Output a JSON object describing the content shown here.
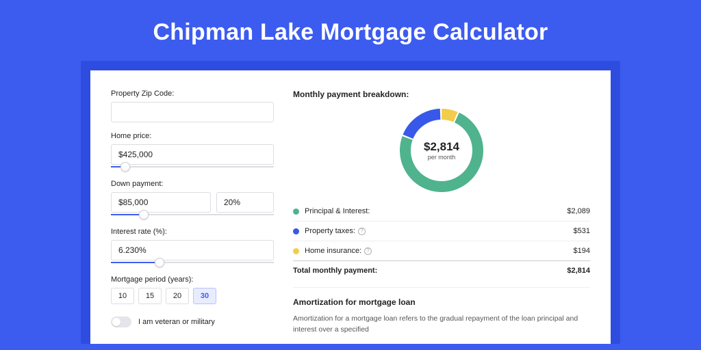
{
  "page": {
    "title": "Chipman Lake Mortgage Calculator",
    "background_color": "#3c5cf0",
    "card_shadow_color": "#2e4de0",
    "card_color": "#ffffff"
  },
  "form": {
    "zip": {
      "label": "Property Zip Code:",
      "value": ""
    },
    "home_price": {
      "label": "Home price:",
      "value": "$425,000",
      "slider_pct": 9
    },
    "down_payment": {
      "label": "Down payment:",
      "amount": "$85,000",
      "pct": "20%",
      "slider_pct": 20
    },
    "interest_rate": {
      "label": "Interest rate (%):",
      "value": "6.230%",
      "slider_pct": 30
    },
    "period": {
      "label": "Mortgage period (years):",
      "options": [
        "10",
        "15",
        "20",
        "30"
      ],
      "selected_index": 3
    },
    "veteran": {
      "label": "I am veteran or military",
      "checked": false
    }
  },
  "breakdown": {
    "title": "Monthly payment breakdown:",
    "center_amount": "$2,814",
    "center_sub": "per month",
    "donut": {
      "type": "donut",
      "size": 122,
      "stroke_width": 16,
      "background_color": "#ffffff",
      "segments": [
        {
          "key": "principal_interest",
          "value": 2089,
          "color": "#4fb38e"
        },
        {
          "key": "property_taxes",
          "value": 531,
          "color": "#3858e9"
        },
        {
          "key": "home_insurance",
          "value": 194,
          "color": "#f2cc4b"
        }
      ],
      "start_angle_deg": -65
    },
    "items": [
      {
        "label": "Principal & Interest:",
        "value": "$2,089",
        "color": "#4fb38e",
        "info": false
      },
      {
        "label": "Property taxes:",
        "value": "$531",
        "color": "#3858e9",
        "info": true
      },
      {
        "label": "Home insurance:",
        "value": "$194",
        "color": "#f2cc4b",
        "info": true
      }
    ],
    "total": {
      "label": "Total monthly payment:",
      "value": "$2,814"
    }
  },
  "amortization": {
    "title": "Amortization for mortgage loan",
    "text": "Amortization for a mortgage loan refers to the gradual repayment of the loan principal and interest over a specified"
  }
}
